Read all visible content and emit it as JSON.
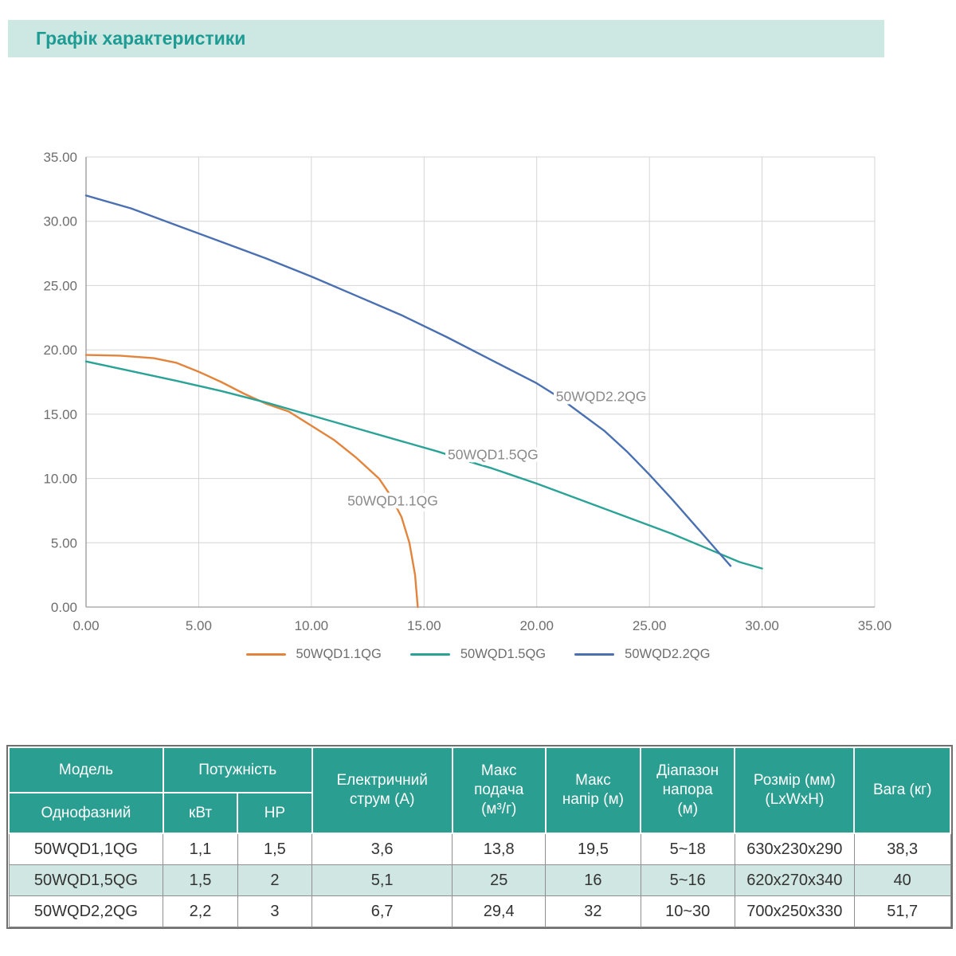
{
  "title": "Графік характеристики",
  "colors": {
    "banner_bg": "#cde7e3",
    "title_text": "#1e9c94",
    "header_bg": "#2b9e92",
    "highlight_row_bg": "#cfe6e2",
    "grid": "#d4d4d4",
    "axis": "#9e9e9e",
    "tick_text": "#6e6e6e",
    "annotation_text": "#8a8a8a",
    "series_orange": "#e3843c",
    "series_teal": "#2aa396",
    "series_blue": "#4a70b2"
  },
  "chart_data": {
    "type": "line",
    "title": "",
    "xlabel": "",
    "ylabel": "",
    "xlim": [
      0,
      35
    ],
    "ylim": [
      0,
      35
    ],
    "grid": true,
    "legend_position": "bottom",
    "x_ticks": [
      {
        "v": 0,
        "label": "0.00"
      },
      {
        "v": 5,
        "label": "5.00"
      },
      {
        "v": 10,
        "label": "10.00"
      },
      {
        "v": 15,
        "label": "15.00"
      },
      {
        "v": 20,
        "label": "20.00"
      },
      {
        "v": 25,
        "label": "25.00"
      },
      {
        "v": 30,
        "label": "30.00"
      },
      {
        "v": 35,
        "label": "35.00"
      }
    ],
    "y_ticks": [
      {
        "v": 0,
        "label": "0.00"
      },
      {
        "v": 5,
        "label": "5.00"
      },
      {
        "v": 10,
        "label": "10.00"
      },
      {
        "v": 15,
        "label": "15.00"
      },
      {
        "v": 20,
        "label": "20.00"
      },
      {
        "v": 25,
        "label": "25.00"
      },
      {
        "v": 30,
        "label": "30.00"
      },
      {
        "v": 35,
        "label": "35.00"
      }
    ],
    "series": [
      {
        "name": "50WQD1.1QG",
        "color": "#e3843c",
        "points": [
          [
            0,
            19.6
          ],
          [
            1.5,
            19.55
          ],
          [
            3,
            19.35
          ],
          [
            4,
            19.0
          ],
          [
            5,
            18.3
          ],
          [
            6,
            17.5
          ],
          [
            7,
            16.6
          ],
          [
            8,
            15.8
          ],
          [
            9,
            15.2
          ],
          [
            10,
            14.1
          ],
          [
            11,
            13.0
          ],
          [
            12,
            11.6
          ],
          [
            13,
            10.0
          ],
          [
            13.5,
            8.7
          ],
          [
            14,
            7.0
          ],
          [
            14.35,
            5.0
          ],
          [
            14.6,
            2.5
          ],
          [
            14.72,
            0
          ]
        ]
      },
      {
        "name": "50WQD1.5QG",
        "color": "#2aa396",
        "points": [
          [
            0,
            19.1
          ],
          [
            2,
            18.35
          ],
          [
            4,
            17.6
          ],
          [
            6,
            16.8
          ],
          [
            8,
            15.9
          ],
          [
            10,
            14.9
          ],
          [
            12,
            13.9
          ],
          [
            14,
            12.9
          ],
          [
            15.6,
            12.1
          ],
          [
            17.4,
            11.1
          ],
          [
            18,
            10.8
          ],
          [
            20,
            9.6
          ],
          [
            22,
            8.3
          ],
          [
            24,
            7.0
          ],
          [
            26,
            5.7
          ],
          [
            27.5,
            4.6
          ],
          [
            29,
            3.5
          ],
          [
            30,
            3.0
          ]
        ]
      },
      {
        "name": "50WQD2.2QG",
        "color": "#4a70b2",
        "points": [
          [
            0,
            32.0
          ],
          [
            2,
            31.0
          ],
          [
            4,
            29.7
          ],
          [
            6,
            28.4
          ],
          [
            8,
            27.1
          ],
          [
            10,
            25.7
          ],
          [
            12,
            24.2
          ],
          [
            14,
            22.7
          ],
          [
            16,
            21.0
          ],
          [
            18,
            19.2
          ],
          [
            20,
            17.4
          ],
          [
            21,
            16.3
          ],
          [
            22,
            15.0
          ],
          [
            23,
            13.7
          ],
          [
            24,
            12.1
          ],
          [
            25,
            10.3
          ],
          [
            26,
            8.4
          ],
          [
            27,
            6.4
          ],
          [
            28,
            4.4
          ],
          [
            28.6,
            3.2
          ]
        ]
      }
    ],
    "annotations": [
      {
        "text": "50WQD1.1QG",
        "x": 11.6,
        "y": 7.9
      },
      {
        "text": "50WQD1.5QG",
        "x": 16.05,
        "y": 11.5
      },
      {
        "text": "50WQD2.2QG",
        "x": 20.85,
        "y": 16.0
      }
    ]
  },
  "legend": {
    "items": [
      {
        "label": "50WQD1.1QG",
        "color": "#e3843c"
      },
      {
        "label": "50WQD1.5QG",
        "color": "#2aa396"
      },
      {
        "label": "50WQD2.2QG",
        "color": "#4a70b2"
      }
    ]
  },
  "table": {
    "header": {
      "col_model": "Модель",
      "col_model_sub": "Однофазний",
      "col_power": "Потужність",
      "col_kw": "кВт",
      "col_hp": "HP",
      "col_current": "Електричний\nструм (А)",
      "col_flow": "Макс\nподача\n(м³/г)",
      "col_head": "Макс\nнапір (м)",
      "col_range": "Діапазон\nнапора\n(м)",
      "col_size": "Розмір (мм)\n(LxWxH)",
      "col_weight": "Вага (кг)"
    },
    "rows": [
      {
        "cells": [
          "50WQD1,1QG",
          "1,1",
          "1,5",
          "3,6",
          "13,8",
          "19,5",
          "5~18",
          "630x230x290",
          "38,3"
        ]
      },
      {
        "cells": [
          "50WQD1,5QG",
          "1,5",
          "2",
          "5,1",
          "25",
          "16",
          "5~16",
          "620x270x340",
          "40"
        ]
      },
      {
        "cells": [
          "50WQD2,2QG",
          "2,2",
          "3",
          "6,7",
          "29,4",
          "32",
          "10~30",
          "700x250x330",
          "51,7"
        ]
      }
    ]
  }
}
